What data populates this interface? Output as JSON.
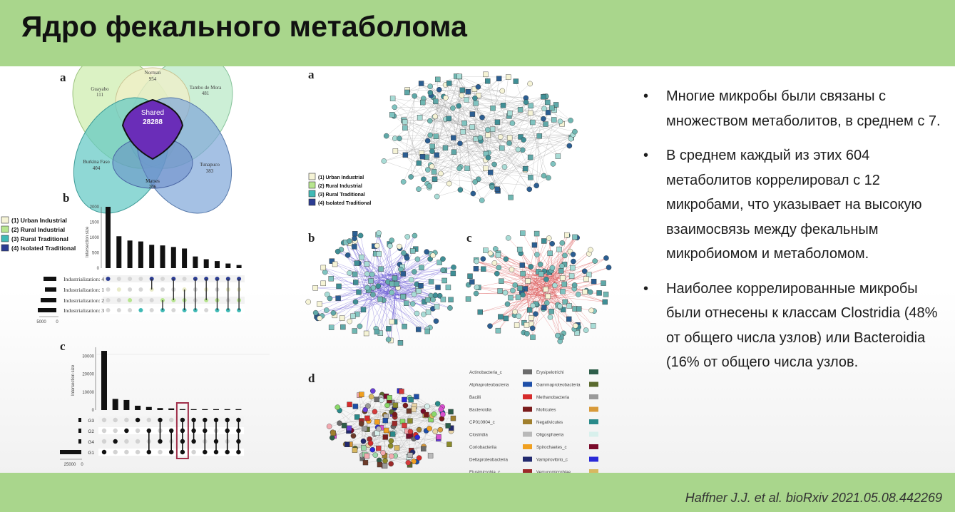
{
  "slide": {
    "title": "Ядро фекального метаболома",
    "citation": "Haffner J.J. et al. bioRxiv 2021.05.08.442269"
  },
  "bullets": [
    {
      "text": "Многие микробы были связаны с множеством метаболитов, в среднем с 7."
    },
    {
      "text": "В среднем каждый из этих 604 метаболитов коррелировал с 12 микробами, что указывает на высокую взаимосвязь между фекальным микробиомом и метаболомом."
    },
    {
      "text": "Наиболее коррелированные микробы были отнесены к классам Clostridia (48% от общего числа узлов) или Bacteroidia (16% от общего числа узлов."
    }
  ],
  "figure": {
    "panel_labels": {
      "a": "a",
      "b": "b",
      "c": "c",
      "d": "d"
    },
    "venn": {
      "sets": [
        {
          "name": "Norman",
          "count": "954",
          "color": "#f3f0c8"
        },
        {
          "name": "Guayabo",
          "count": "111",
          "color": "#cfeeb0"
        },
        {
          "name": "Tambo de Mora",
          "count": "481",
          "color": "#b6e8c4"
        },
        {
          "name": "Burkina Faso",
          "count": "404",
          "color": "#5fc8c3"
        },
        {
          "name": "Tunapuco",
          "count": "383",
          "color": "#7fa6d8"
        },
        {
          "name": "Matses",
          "count": "206",
          "color": "#5d7fc4"
        }
      ],
      "shared_label": "Shared",
      "shared_count": "28288",
      "shared_color": "#6a2db8"
    },
    "groups_legend": [
      {
        "label": "(1) Urban Industrial",
        "color": "#f6f4d6"
      },
      {
        "label": "(2) Rural Industrial",
        "color": "#b7e58f"
      },
      {
        "label": "(3) Rural Traditional",
        "color": "#3fb9b5"
      },
      {
        "label": "(4) Isolated Traditional",
        "color": "#2b3c92"
      }
    ],
    "upset_b": {
      "ylabel": "Intersection size",
      "yticks": [
        "2000",
        "1500",
        "1000",
        "500",
        "0"
      ],
      "bars": [
        2000,
        1040,
        900,
        870,
        760,
        740,
        690,
        640,
        380,
        290,
        230,
        150,
        100
      ],
      "rows": [
        "Industrialization: 4",
        "Industrialization: 1",
        "Industrialization: 2",
        "Industrialization: 3"
      ],
      "set_axis": [
        "5000",
        "0"
      ]
    },
    "upset_c": {
      "ylabel": "Intersection size",
      "yticks": [
        "30000",
        "20000",
        "10000",
        "0"
      ],
      "bars": [
        33000,
        6200,
        5600,
        2400,
        1700,
        1100,
        900,
        500,
        400,
        300,
        250,
        200,
        150
      ],
      "rows": [
        "G3",
        "G2",
        "G4",
        "G1"
      ],
      "set_axis": [
        "25000",
        "0"
      ]
    },
    "taxa_legend": [
      {
        "label": "Actinobacteria_c",
        "color": "#6b6b6b"
      },
      {
        "label": "Alphaproteobacteria",
        "color": "#1e4fa8"
      },
      {
        "label": "Bacilli",
        "color": "#d62b2b"
      },
      {
        "label": "Bacteroidia",
        "color": "#7a1b1b"
      },
      {
        "label": "CP010904_c",
        "color": "#a07f2c"
      },
      {
        "label": "Clostridia",
        "color": "#b9b9b9"
      },
      {
        "label": "Coriobacteriia",
        "color": "#f0a020"
      },
      {
        "label": "Deltaproteobacteria",
        "color": "#222a6e"
      },
      {
        "label": "Elusimicrobia_c",
        "color": "#9c2a2a"
      },
      {
        "label": "Erysipelotrichi",
        "color": "#8ad86a"
      },
      {
        "label": "Gammaproteobacteria",
        "color": "#6c3b2a"
      },
      {
        "label": "Methanobacteria",
        "color": "#f3a9b0"
      },
      {
        "label": "Mollicutes",
        "color": "#d94fd0"
      },
      {
        "label": "Negativicutes",
        "color": "#8a8a2a"
      },
      {
        "label": "Oligosphaeria",
        "color": "#d53b3b"
      },
      {
        "label": "Spirochaetes_c",
        "color": "#9ad8a8"
      },
      {
        "label": "Vampirovibrio_c",
        "color": "#6a3fd8"
      },
      {
        "label": "Verrucomicrobiae",
        "color": "#e8d4a6"
      },
      {
        "label": "",
        "color": "#2e5e4a"
      },
      {
        "label": "",
        "color": "#5a6a2e"
      },
      {
        "label": "",
        "color": "#9a9a9a"
      },
      {
        "label": "",
        "color": "#d89a3a"
      },
      {
        "label": "",
        "color": "#2a8a8a"
      },
      {
        "label": "",
        "color": "#d8f0ec"
      },
      {
        "label": "",
        "color": "#7a0a2a"
      },
      {
        "label": "",
        "color": "#2a2ad8"
      },
      {
        "label": "",
        "color": "#d8b860"
      }
    ]
  }
}
